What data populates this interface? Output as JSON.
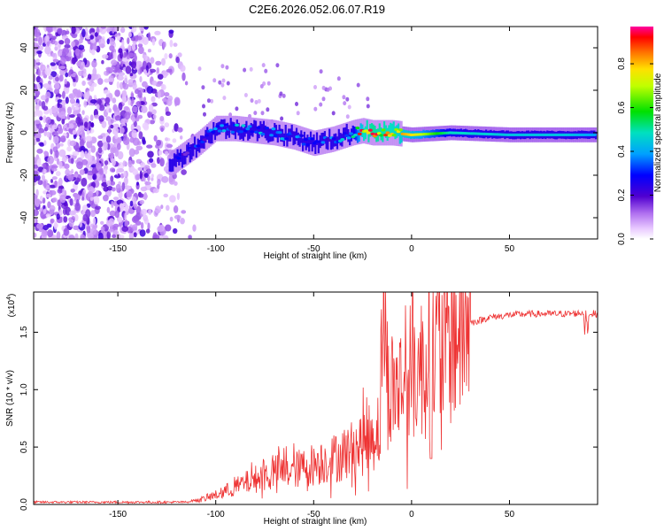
{
  "title": "C2E6.2026.052.06.07.R19",
  "chart_data": [
    {
      "type": "heatmap",
      "xlabel": "Height of straight line (km)",
      "ylabel": "Frequency (Hz)",
      "xlim": [
        -193,
        95
      ],
      "ylim": [
        -50,
        50
      ],
      "xticks": [
        -150,
        -100,
        -50,
        0,
        50
      ],
      "yticks": [
        -40,
        -20,
        0,
        20,
        40
      ],
      "colorbar": {
        "label": "Normalized spectral amplitude",
        "range": [
          0.0,
          0.97
        ],
        "ticks": [
          0.0,
          0.2,
          0.4,
          0.6,
          0.8
        ],
        "tick_labels": [
          "0.0",
          "0.2",
          "0.4",
          "0.6",
          "0.8"
        ]
      },
      "ridge": {
        "x": [
          -122,
          -110,
          -100,
          -90,
          -80,
          -70,
          -60,
          -50,
          -40,
          -30,
          -25,
          -20,
          -10,
          0,
          20,
          50,
          80,
          94
        ],
        "freq_hz": [
          -14,
          -6,
          2,
          2,
          1,
          0,
          -2,
          -5,
          -3,
          0,
          1,
          0,
          0,
          -1,
          0,
          -1,
          -1,
          -1
        ],
        "amplitude": [
          0.25,
          0.3,
          0.35,
          0.4,
          0.4,
          0.4,
          0.35,
          0.3,
          0.35,
          0.5,
          0.9,
          0.95,
          0.9,
          0.8,
          0.5,
          0.45,
          0.45,
          0.4
        ]
      },
      "noise_region_x": [
        -193,
        -110
      ]
    },
    {
      "type": "line",
      "xlabel": "Height of straight line (km)",
      "ylabel": "SNR (10 * v/v)",
      "scale_label": "(x10",
      "scale_exp": "4",
      "xlim": [
        -193,
        95
      ],
      "ylim": [
        0,
        1.85
      ],
      "xticks": [
        -150,
        -100,
        -50,
        0,
        50
      ],
      "yticks": [
        0.0,
        0.5,
        1.0,
        1.5
      ],
      "ytick_labels": [
        "0.0",
        "0.5",
        "1.0",
        "1.5"
      ],
      "color": "#ee3333",
      "trend": {
        "x": [
          -193,
          -115,
          -110,
          -100,
          -90,
          -80,
          -70,
          -60,
          -50,
          -40,
          -30,
          -20,
          -16,
          -15,
          -12,
          -5,
          0,
          5,
          10,
          15,
          20,
          25,
          30,
          40,
          50,
          60,
          70,
          80,
          90,
          94
        ],
        "y": [
          0.01,
          0.01,
          0.03,
          0.08,
          0.15,
          0.22,
          0.28,
          0.3,
          0.35,
          0.4,
          0.48,
          0.6,
          0.7,
          1.83,
          1.0,
          1.05,
          1.15,
          1.2,
          1.3,
          1.4,
          1.45,
          1.52,
          1.58,
          1.63,
          1.65,
          1.66,
          1.66,
          1.66,
          1.67,
          1.66
        ]
      },
      "noise_amplitude_frac": 0.55
    }
  ]
}
